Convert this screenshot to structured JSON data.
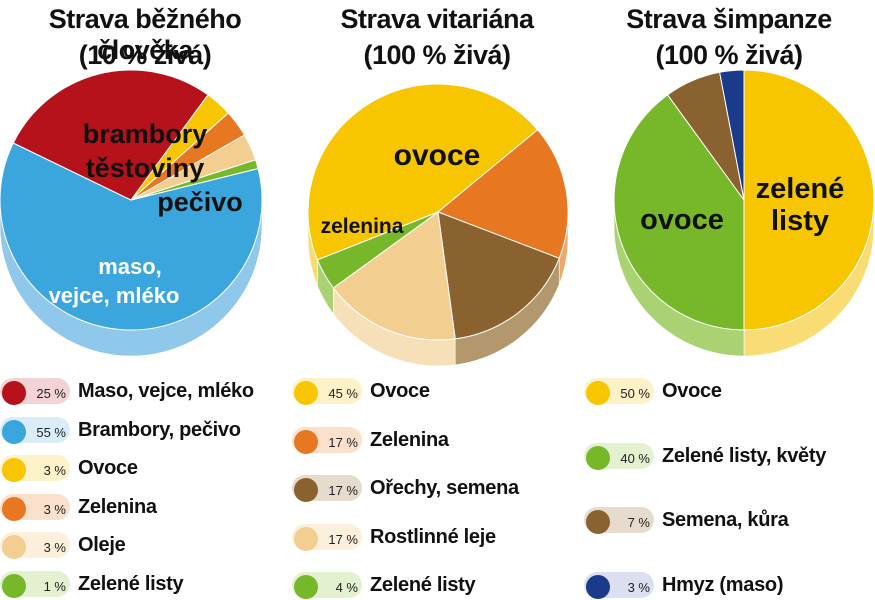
{
  "chart_data": [
    {
      "type": "pie",
      "title": "Strava běžného člověka",
      "subtitle": "(10 % živá)",
      "slices": [
        {
          "name": "Brambory, pečivo",
          "value": 55,
          "pct_label": "55 %",
          "color": "#3ba6dd",
          "side_color": "#8fc8ea",
          "pill_color": "#d9edf8"
        },
        {
          "name": "Maso, vejce, mléko",
          "value": 25,
          "pct_label": "25 %",
          "color": "#b5121b",
          "side_color": "#d9604a",
          "pill_color": "#f3d3d3"
        },
        {
          "name": "Ovoce",
          "value": 3,
          "pct_label": "3 %",
          "color": "#f7c600",
          "side_color": "#f9dc73",
          "pill_color": "#fdf1c8"
        },
        {
          "name": "Zelenina",
          "value": 3,
          "pct_label": "3 %",
          "color": "#e87722",
          "side_color": "#f0a86a",
          "pill_color": "#fbe0cc"
        },
        {
          "name": "Oleje",
          "value": 3,
          "pct_label": "3 %",
          "color": "#f2cf91",
          "side_color": "#f6e0b8",
          "pill_color": "#fcf0dc"
        },
        {
          "name": "Zelené listy",
          "value": 1,
          "pct_label": "1 %",
          "color": "#76b82a",
          "side_color": "#a9d272",
          "pill_color": "#e3f1d1"
        }
      ],
      "slice_texts": [
        "brambory",
        "těstoviny",
        "pečivo",
        "maso,",
        "vejce, mléko"
      ]
    },
    {
      "type": "pie",
      "title": "Strava vitariána",
      "subtitle": "(100 % živá)",
      "slices": [
        {
          "name": "Ovoce",
          "value": 45,
          "pct_label": "45 %",
          "color": "#f7c600",
          "side_color": "#f9dc73",
          "pill_color": "#fdf1c8"
        },
        {
          "name": "Zelenina",
          "value": 17,
          "pct_label": "17 %",
          "color": "#e87722",
          "side_color": "#f0a86a",
          "pill_color": "#fbe0cc"
        },
        {
          "name": "Ořechy, semena",
          "value": 17,
          "pct_label": "17 %",
          "color": "#8a6230",
          "side_color": "#b3976d",
          "pill_color": "#e6dccd"
        },
        {
          "name": "Rostlinné leje",
          "value": 17,
          "pct_label": "17 %",
          "color": "#f2cf91",
          "side_color": "#f6e0b8",
          "pill_color": "#fcf0dc"
        },
        {
          "name": "Zelené listy",
          "value": 4,
          "pct_label": "4 %",
          "color": "#76b82a",
          "side_color": "#a9d272",
          "pill_color": "#e3f1d1"
        }
      ],
      "slice_texts": [
        "ovoce",
        "zelenina"
      ]
    },
    {
      "type": "pie",
      "title": "Strava šimpanze",
      "subtitle": "(100 % živá)",
      "slices": [
        {
          "name": "Ovoce",
          "value": 50,
          "pct_label": "50 %",
          "color": "#f7c600",
          "side_color": "#f9dc73",
          "pill_color": "#fdf1c8"
        },
        {
          "name": "Zelené listy, květy",
          "value": 40,
          "pct_label": "40 %",
          "color": "#76b82a",
          "side_color": "#a9d272",
          "pill_color": "#e3f1d1"
        },
        {
          "name": "Semena, kůra",
          "value": 7,
          "pct_label": "7 %",
          "color": "#8a6230",
          "side_color": "#b3976d",
          "pill_color": "#e6dccd"
        },
        {
          "name": "Hmyz (maso)",
          "value": 3,
          "pct_label": "3 %",
          "color": "#1a3a8a",
          "side_color": "#5b6fb0",
          "pill_color": "#dcdff0"
        }
      ],
      "slice_texts": [
        "ovoce",
        "zelené",
        "listy"
      ]
    }
  ]
}
